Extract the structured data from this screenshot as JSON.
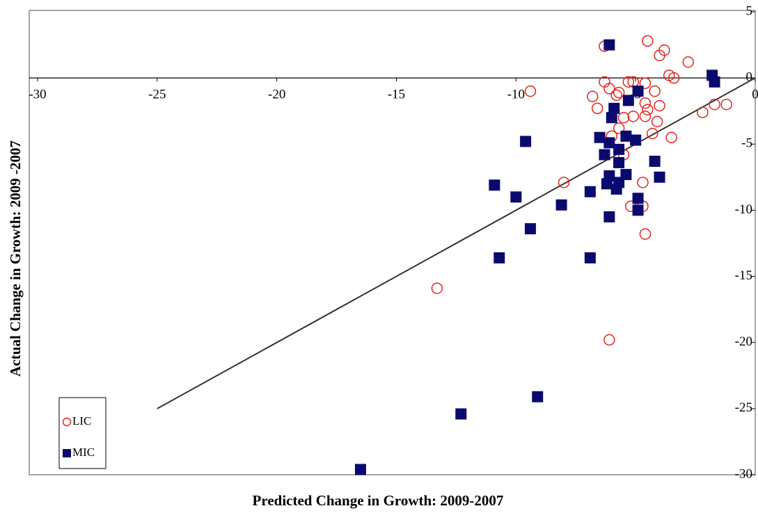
{
  "chart_data": {
    "type": "scatter",
    "x_label": "Predicted Change in Growth: 2009-2007",
    "y_label": "Actual Change in Growth: 2009 -2007",
    "xlim": [
      -30,
      0
    ],
    "ylim": [
      -30,
      5
    ],
    "xticks": [
      -30,
      -25,
      -20,
      -15,
      -10,
      -5,
      0
    ],
    "yticks": [
      -30,
      -25,
      -20,
      -15,
      -10,
      -5,
      0,
      5
    ],
    "fit_line": {
      "x": [
        -25,
        0
      ],
      "y": [
        -25,
        0
      ],
      "color": "#333333"
    },
    "series": [
      {
        "name": "LIC",
        "color": "#e8221b",
        "marker": "circle",
        "x": [
          -6.3,
          -4.5,
          -3.8,
          -4.0,
          -2.8,
          -3.6,
          -3.4,
          -6.3,
          -6.1,
          -5.3,
          -5.1,
          -4.6,
          -5.7,
          -5.8,
          -6.8,
          -9.4,
          -4.2,
          -4.6,
          -4.5,
          -4.0,
          -6.6,
          -5.1,
          -4.6,
          -4.1,
          -5.5,
          -2.2,
          -1.7,
          -1.2,
          -4.3,
          -3.5,
          -6.0,
          -5.7,
          -8.0,
          -5.5,
          -4.7,
          -5.2,
          -4.7,
          -4.6,
          -13.3,
          -6.1
        ],
        "values": [
          2.4,
          2.8,
          2.1,
          1.7,
          1.2,
          0.2,
          0,
          -0.3,
          -0.8,
          -0.3,
          -0.3,
          -0.4,
          -1.1,
          -1.3,
          -1.4,
          -1.0,
          -1.0,
          -1.9,
          -2.4,
          -2.1,
          -2.3,
          -2.9,
          -2.9,
          -3.3,
          -3.0,
          -2.6,
          -2.0,
          -2.0,
          -4.2,
          -4.5,
          -4.4,
          -3.8,
          -7.9,
          -5.8,
          -7.9,
          -9.7,
          -9.7,
          -11.8,
          -15.9,
          -19.8
        ]
      },
      {
        "name": "MIC",
        "color": "#0a0a6e",
        "marker": "square",
        "x": [
          -6.1,
          -1.8,
          -1.7,
          -4.9,
          -5.3,
          -5.9,
          -6.0,
          -9.6,
          -6.5,
          -6.3,
          -6.1,
          -5.4,
          -5.0,
          -5.7,
          -5.7,
          -4.2,
          -5.4,
          -6.1,
          -6.2,
          -5.8,
          -5.7,
          -4.0,
          -6.9,
          -10.9,
          -10.0,
          -8.1,
          -4.9,
          -4.9,
          -6.1,
          -9.4,
          -10.7,
          -6.9,
          -9.1,
          -12.3,
          -16.5
        ],
        "values": [
          2.5,
          0.2,
          -0.3,
          -1.0,
          -1.7,
          -2.3,
          -3.0,
          -4.8,
          -4.5,
          -5.8,
          -4.9,
          -4.4,
          -4.7,
          -5.4,
          -6.4,
          -6.3,
          -7.3,
          -7.4,
          -8.0,
          -8.4,
          -7.9,
          -7.5,
          -8.6,
          -8.1,
          -9.0,
          -9.6,
          -9.1,
          -10.0,
          -10.5,
          -11.4,
          -13.6,
          -13.6,
          -24.1,
          -25.4,
          -29.6
        ]
      }
    ]
  }
}
